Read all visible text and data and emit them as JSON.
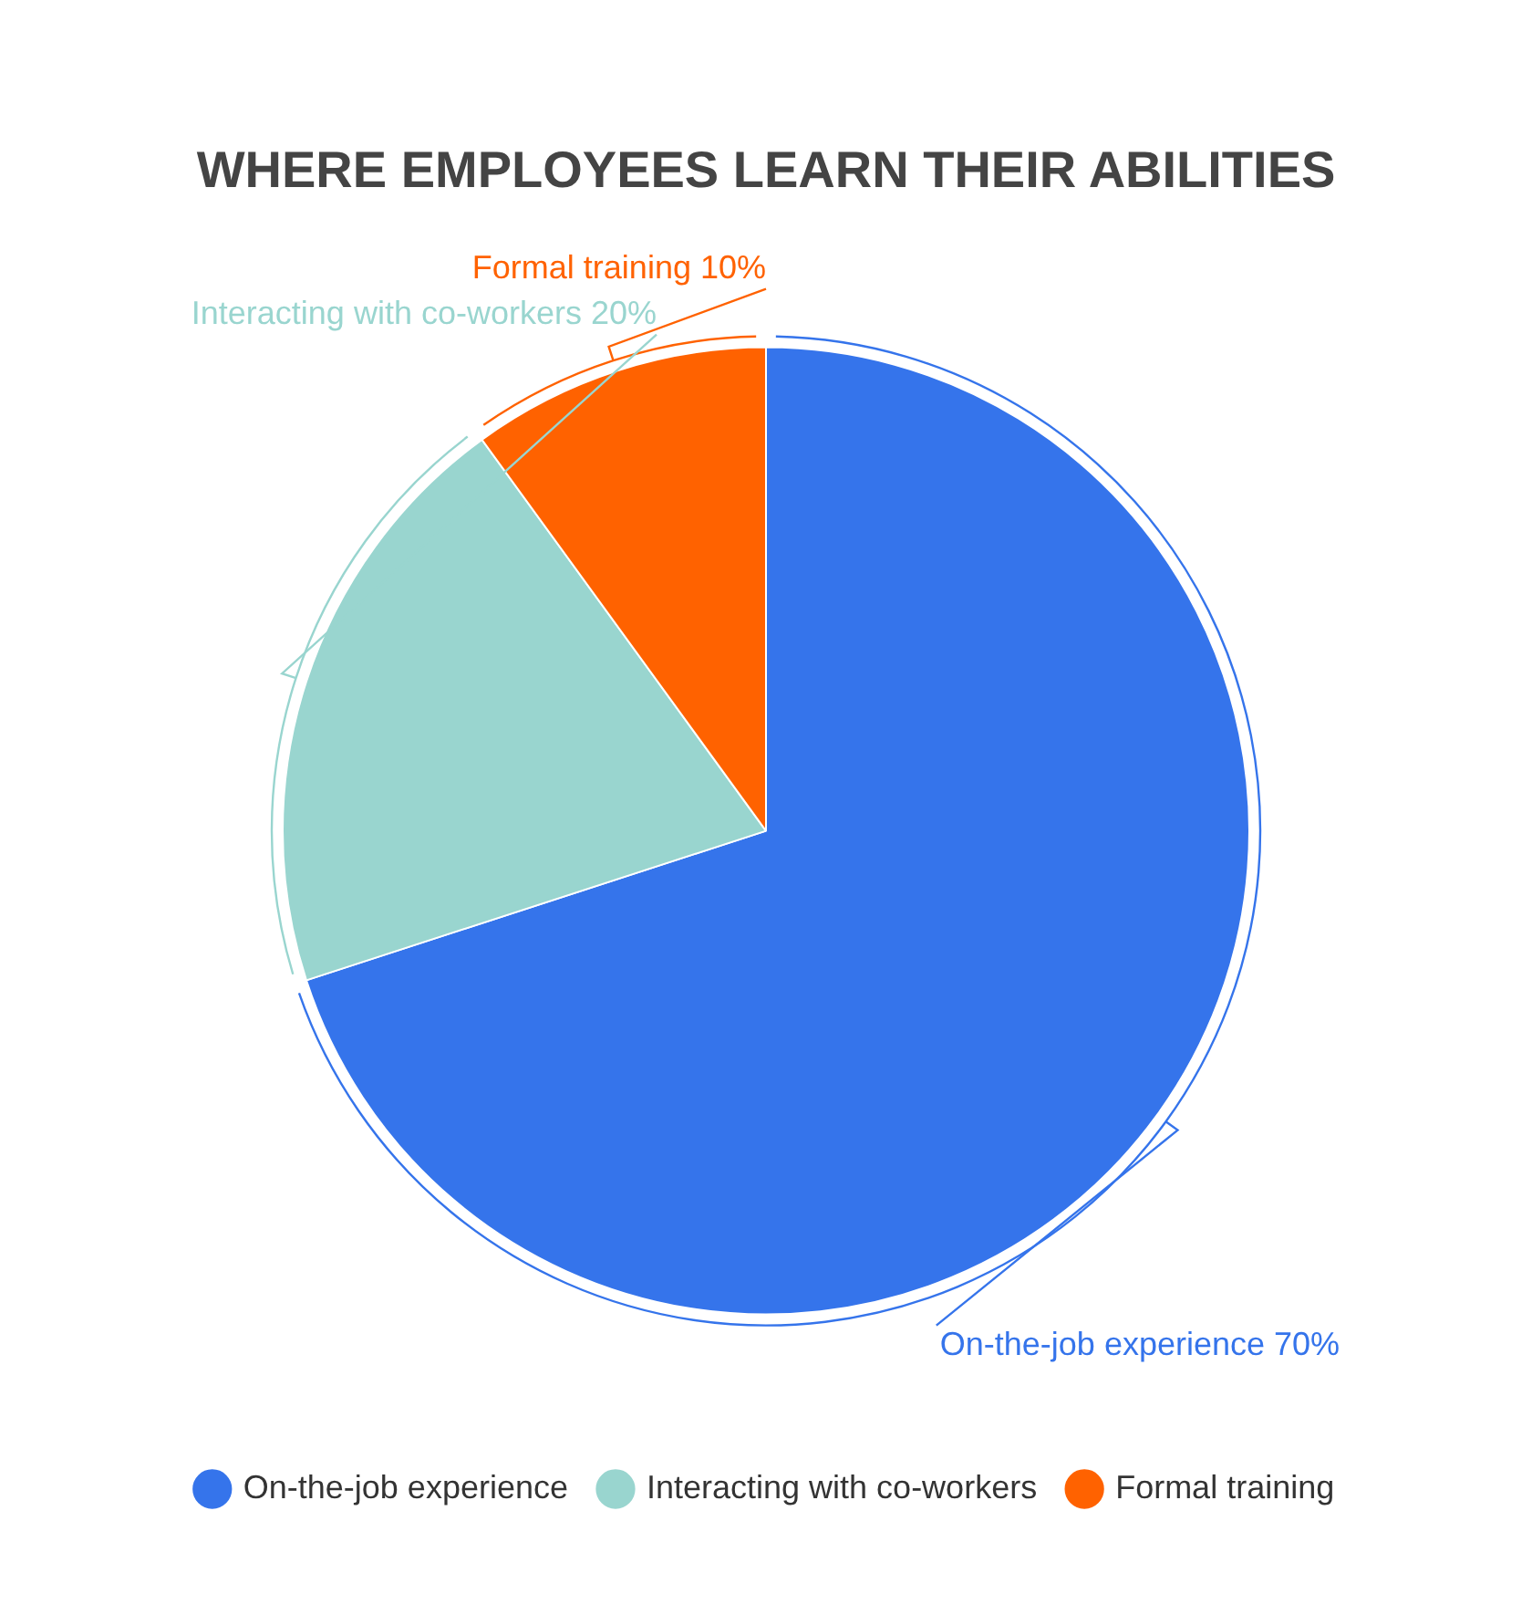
{
  "chart_data": {
    "type": "pie",
    "title": "WHERE EMPLOYEES LEARN THEIR ABILITIES",
    "categories": [
      "On-the-job experience",
      "Interacting with co-workers",
      "Formal training"
    ],
    "values": [
      70,
      20,
      10
    ],
    "colors": [
      "#3574eb",
      "#99d5cf",
      "#ff6200"
    ],
    "value_labels": [
      "On-the-job experience 70%",
      "Interacting with co-workers 20%",
      "Formal training 10%"
    ],
    "legend": "bottom"
  }
}
